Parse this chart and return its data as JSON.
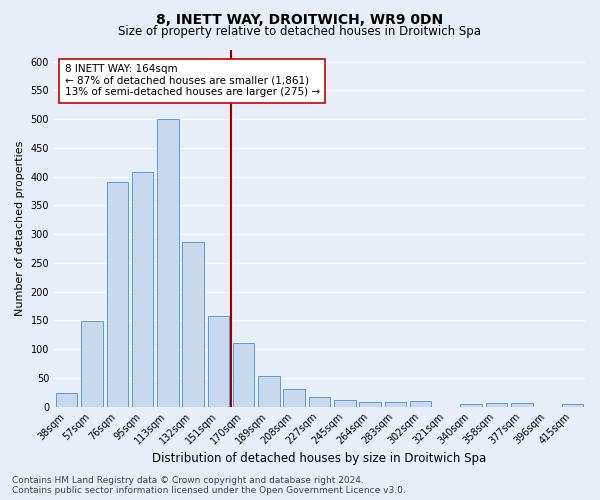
{
  "title": "8, INETT WAY, DROITWICH, WR9 0DN",
  "subtitle": "Size of property relative to detached houses in Droitwich Spa",
  "xlabel": "Distribution of detached houses by size in Droitwich Spa",
  "ylabel": "Number of detached properties",
  "bar_labels": [
    "38sqm",
    "57sqm",
    "76sqm",
    "95sqm",
    "113sqm",
    "132sqm",
    "151sqm",
    "170sqm",
    "189sqm",
    "208sqm",
    "227sqm",
    "245sqm",
    "264sqm",
    "283sqm",
    "302sqm",
    "321sqm",
    "340sqm",
    "358sqm",
    "377sqm",
    "396sqm",
    "415sqm"
  ],
  "bar_values": [
    23,
    148,
    390,
    408,
    500,
    287,
    158,
    110,
    53,
    30,
    17,
    12,
    8,
    8,
    9,
    0,
    5,
    6,
    7,
    0,
    5
  ],
  "bar_color": "#c8d9ee",
  "bar_edge_color": "#5b9bd5",
  "vline_index": 7,
  "vline_color": "#990000",
  "annotation_text": "8 INETT WAY: 164sqm\n← 87% of detached houses are smaller (1,861)\n13% of semi-detached houses are larger (275) →",
  "annotation_box_color": "#ffffff",
  "annotation_box_edge": "#cc0000",
  "ylim": [
    0,
    620
  ],
  "yticks": [
    0,
    50,
    100,
    150,
    200,
    250,
    300,
    350,
    400,
    450,
    500,
    550,
    600
  ],
  "footer_line1": "Contains HM Land Registry data © Crown copyright and database right 2024.",
  "footer_line2": "Contains public sector information licensed under the Open Government Licence v3.0.",
  "bg_color": "#e8eef8",
  "plot_bg_color": "#e8eef8",
  "grid_color": "#ffffff",
  "title_fontsize": 10,
  "subtitle_fontsize": 8.5,
  "xlabel_fontsize": 8.5,
  "ylabel_fontsize": 8,
  "tick_fontsize": 7,
  "footer_fontsize": 6.5,
  "annot_fontsize": 7.5
}
